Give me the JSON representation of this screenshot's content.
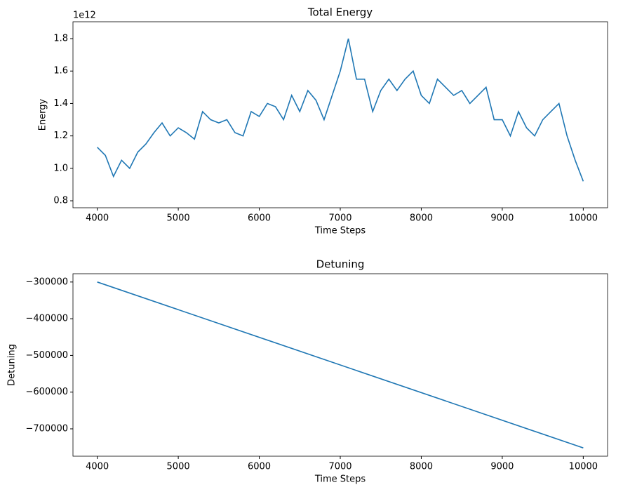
{
  "chart_data": [
    {
      "type": "line",
      "title": "Total Energy",
      "xlabel": "Time Steps",
      "ylabel": "Energy",
      "y_offset_label": "1e12",
      "x": [
        4000,
        4100,
        4200,
        4300,
        4400,
        4500,
        4600,
        4700,
        4800,
        4900,
        5000,
        5100,
        5200,
        5300,
        5400,
        5500,
        5600,
        5700,
        5800,
        5900,
        6000,
        6100,
        6200,
        6300,
        6400,
        6500,
        6600,
        6700,
        6800,
        6900,
        7000,
        7100,
        7200,
        7300,
        7400,
        7500,
        7600,
        7700,
        7800,
        7900,
        8000,
        8100,
        8200,
        8300,
        8400,
        8500,
        8600,
        8700,
        8800,
        8900,
        9000,
        9100,
        9200,
        9300,
        9400,
        9500,
        9600,
        9700,
        9800,
        9900,
        10000
      ],
      "series": [
        {
          "name": "Total Energy",
          "color": "#1f77b4",
          "values": [
            1.13,
            1.08,
            0.95,
            1.05,
            1.0,
            1.1,
            1.15,
            1.22,
            1.28,
            1.2,
            1.25,
            1.22,
            1.18,
            1.35,
            1.3,
            1.28,
            1.3,
            1.22,
            1.2,
            1.35,
            1.32,
            1.4,
            1.38,
            1.3,
            1.45,
            1.35,
            1.48,
            1.42,
            1.3,
            1.45,
            1.6,
            1.8,
            1.55,
            1.55,
            1.35,
            1.48,
            1.55,
            1.48,
            1.55,
            1.6,
            1.45,
            1.4,
            1.55,
            1.5,
            1.45,
            1.48,
            1.4,
            1.45,
            1.5,
            1.3,
            1.3,
            1.2,
            1.35,
            1.25,
            1.2,
            1.3,
            1.35,
            1.4,
            1.2,
            1.05,
            0.92
          ]
        }
      ],
      "xlim": [
        3700,
        10300
      ],
      "xticks": [
        4000,
        5000,
        6000,
        7000,
        8000,
        9000,
        10000
      ],
      "ylim": [
        0.757,
        1.904
      ],
      "yticks": [
        0.8,
        {
          "value": 1.0,
          "label": "1.0"
        },
        1.2,
        1.4,
        1.6,
        1.8
      ]
    },
    {
      "type": "line",
      "title": "Detuning",
      "xlabel": "Time Steps",
      "ylabel": "Detuning",
      "x": [
        4000,
        10000
      ],
      "series": [
        {
          "name": "Detuning",
          "color": "#1f77b4",
          "values": [
            -300000,
            -752000
          ]
        }
      ],
      "xlim": [
        3700,
        10300
      ],
      "xticks": [
        4000,
        5000,
        6000,
        7000,
        8000,
        9000,
        10000
      ],
      "ylim": [
        -774600,
        -277400
      ],
      "yticks": [
        {
          "value": -300000,
          "label": "−300000"
        },
        {
          "value": -400000,
          "label": "−400000"
        },
        {
          "value": -500000,
          "label": "−500000"
        },
        {
          "value": -600000,
          "label": "−600000"
        },
        {
          "value": -700000,
          "label": "−700000"
        }
      ]
    }
  ]
}
